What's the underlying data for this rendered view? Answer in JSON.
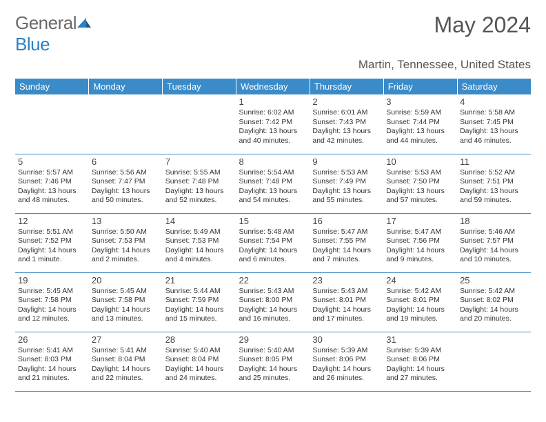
{
  "logo": {
    "text_gray": "General",
    "text_blue": "Blue"
  },
  "title": "May 2024",
  "location": "Martin, Tennessee, United States",
  "colors": {
    "header_bg": "#3b8bc9",
    "header_text": "#ffffff",
    "cell_border": "#3b8bc9",
    "text": "#333333",
    "logo_gray": "#6a6a6a",
    "logo_blue": "#2d7fc1"
  },
  "day_headers": [
    "Sunday",
    "Monday",
    "Tuesday",
    "Wednesday",
    "Thursday",
    "Friday",
    "Saturday"
  ],
  "weeks": [
    [
      null,
      null,
      null,
      {
        "n": "1",
        "sr": "Sunrise: 6:02 AM",
        "ss": "Sunset: 7:42 PM",
        "dl": "Daylight: 13 hours and 40 minutes."
      },
      {
        "n": "2",
        "sr": "Sunrise: 6:01 AM",
        "ss": "Sunset: 7:43 PM",
        "dl": "Daylight: 13 hours and 42 minutes."
      },
      {
        "n": "3",
        "sr": "Sunrise: 5:59 AM",
        "ss": "Sunset: 7:44 PM",
        "dl": "Daylight: 13 hours and 44 minutes."
      },
      {
        "n": "4",
        "sr": "Sunrise: 5:58 AM",
        "ss": "Sunset: 7:45 PM",
        "dl": "Daylight: 13 hours and 46 minutes."
      }
    ],
    [
      {
        "n": "5",
        "sr": "Sunrise: 5:57 AM",
        "ss": "Sunset: 7:46 PM",
        "dl": "Daylight: 13 hours and 48 minutes."
      },
      {
        "n": "6",
        "sr": "Sunrise: 5:56 AM",
        "ss": "Sunset: 7:47 PM",
        "dl": "Daylight: 13 hours and 50 minutes."
      },
      {
        "n": "7",
        "sr": "Sunrise: 5:55 AM",
        "ss": "Sunset: 7:48 PM",
        "dl": "Daylight: 13 hours and 52 minutes."
      },
      {
        "n": "8",
        "sr": "Sunrise: 5:54 AM",
        "ss": "Sunset: 7:48 PM",
        "dl": "Daylight: 13 hours and 54 minutes."
      },
      {
        "n": "9",
        "sr": "Sunrise: 5:53 AM",
        "ss": "Sunset: 7:49 PM",
        "dl": "Daylight: 13 hours and 55 minutes."
      },
      {
        "n": "10",
        "sr": "Sunrise: 5:53 AM",
        "ss": "Sunset: 7:50 PM",
        "dl": "Daylight: 13 hours and 57 minutes."
      },
      {
        "n": "11",
        "sr": "Sunrise: 5:52 AM",
        "ss": "Sunset: 7:51 PM",
        "dl": "Daylight: 13 hours and 59 minutes."
      }
    ],
    [
      {
        "n": "12",
        "sr": "Sunrise: 5:51 AM",
        "ss": "Sunset: 7:52 PM",
        "dl": "Daylight: 14 hours and 1 minute."
      },
      {
        "n": "13",
        "sr": "Sunrise: 5:50 AM",
        "ss": "Sunset: 7:53 PM",
        "dl": "Daylight: 14 hours and 2 minutes."
      },
      {
        "n": "14",
        "sr": "Sunrise: 5:49 AM",
        "ss": "Sunset: 7:53 PM",
        "dl": "Daylight: 14 hours and 4 minutes."
      },
      {
        "n": "15",
        "sr": "Sunrise: 5:48 AM",
        "ss": "Sunset: 7:54 PM",
        "dl": "Daylight: 14 hours and 6 minutes."
      },
      {
        "n": "16",
        "sr": "Sunrise: 5:47 AM",
        "ss": "Sunset: 7:55 PM",
        "dl": "Daylight: 14 hours and 7 minutes."
      },
      {
        "n": "17",
        "sr": "Sunrise: 5:47 AM",
        "ss": "Sunset: 7:56 PM",
        "dl": "Daylight: 14 hours and 9 minutes."
      },
      {
        "n": "18",
        "sr": "Sunrise: 5:46 AM",
        "ss": "Sunset: 7:57 PM",
        "dl": "Daylight: 14 hours and 10 minutes."
      }
    ],
    [
      {
        "n": "19",
        "sr": "Sunrise: 5:45 AM",
        "ss": "Sunset: 7:58 PM",
        "dl": "Daylight: 14 hours and 12 minutes."
      },
      {
        "n": "20",
        "sr": "Sunrise: 5:45 AM",
        "ss": "Sunset: 7:58 PM",
        "dl": "Daylight: 14 hours and 13 minutes."
      },
      {
        "n": "21",
        "sr": "Sunrise: 5:44 AM",
        "ss": "Sunset: 7:59 PM",
        "dl": "Daylight: 14 hours and 15 minutes."
      },
      {
        "n": "22",
        "sr": "Sunrise: 5:43 AM",
        "ss": "Sunset: 8:00 PM",
        "dl": "Daylight: 14 hours and 16 minutes."
      },
      {
        "n": "23",
        "sr": "Sunrise: 5:43 AM",
        "ss": "Sunset: 8:01 PM",
        "dl": "Daylight: 14 hours and 17 minutes."
      },
      {
        "n": "24",
        "sr": "Sunrise: 5:42 AM",
        "ss": "Sunset: 8:01 PM",
        "dl": "Daylight: 14 hours and 19 minutes."
      },
      {
        "n": "25",
        "sr": "Sunrise: 5:42 AM",
        "ss": "Sunset: 8:02 PM",
        "dl": "Daylight: 14 hours and 20 minutes."
      }
    ],
    [
      {
        "n": "26",
        "sr": "Sunrise: 5:41 AM",
        "ss": "Sunset: 8:03 PM",
        "dl": "Daylight: 14 hours and 21 minutes."
      },
      {
        "n": "27",
        "sr": "Sunrise: 5:41 AM",
        "ss": "Sunset: 8:04 PM",
        "dl": "Daylight: 14 hours and 22 minutes."
      },
      {
        "n": "28",
        "sr": "Sunrise: 5:40 AM",
        "ss": "Sunset: 8:04 PM",
        "dl": "Daylight: 14 hours and 24 minutes."
      },
      {
        "n": "29",
        "sr": "Sunrise: 5:40 AM",
        "ss": "Sunset: 8:05 PM",
        "dl": "Daylight: 14 hours and 25 minutes."
      },
      {
        "n": "30",
        "sr": "Sunrise: 5:39 AM",
        "ss": "Sunset: 8:06 PM",
        "dl": "Daylight: 14 hours and 26 minutes."
      },
      {
        "n": "31",
        "sr": "Sunrise: 5:39 AM",
        "ss": "Sunset: 8:06 PM",
        "dl": "Daylight: 14 hours and 27 minutes."
      },
      null
    ]
  ]
}
